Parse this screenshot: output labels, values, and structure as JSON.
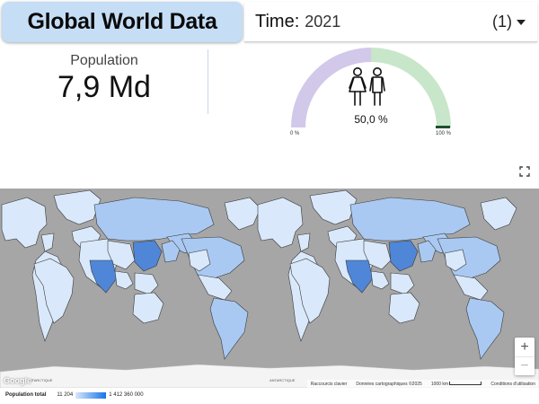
{
  "header": {
    "title": "Global World Data"
  },
  "time_filter": {
    "label": "Time:",
    "value": "2021",
    "count": "(1)"
  },
  "kpi": {
    "label": "Population",
    "value": "7,9 Md"
  },
  "gauge": {
    "value_text": "50,0 %",
    "min_label": "0 %",
    "max_label": "100 %",
    "share_female": 0.5,
    "colors": {
      "female": "#d2c8ea",
      "male": "#c8e6c9",
      "marker": "#1f4e2a"
    }
  },
  "map": {
    "labels": {
      "antarctica": "ANTARCTIQUE"
    },
    "google": "Google",
    "footer": {
      "shortcuts": "Raccourcis clavier",
      "data": "Données cartographiques ©2025",
      "scale": "1000 km",
      "terms": "Conditions d'utilisation"
    },
    "zoom": {
      "in": "+",
      "out": "−"
    },
    "colors": {
      "ocean": "#a6a6a6",
      "land": "#d9e9fb",
      "mid": "#aac9f2",
      "high": "#4f86d8",
      "border": "#3a3a3a"
    }
  },
  "legend": {
    "title": "Population total",
    "min": "11 204",
    "max": "1 412 360 000"
  }
}
